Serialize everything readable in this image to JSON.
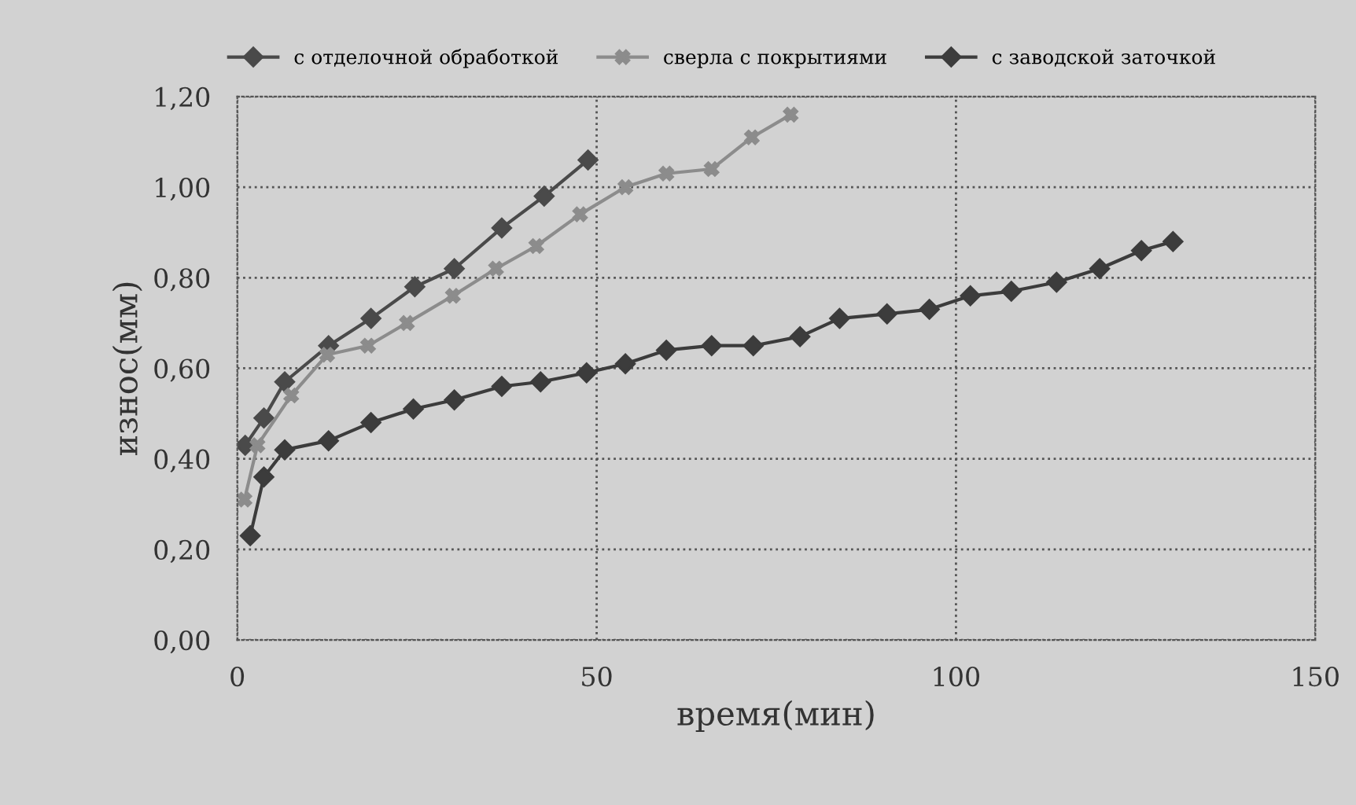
{
  "chart_data": {
    "type": "line",
    "xlabel": "время(мин)",
    "ylabel": "износ(мм)",
    "xlim": [
      0,
      150
    ],
    "xticks": [
      0,
      50,
      100,
      150
    ],
    "ylim": [
      0,
      1.2
    ],
    "yticks": [
      {
        "value": 0,
        "label": "0,00"
      },
      {
        "value": 0.2,
        "label": "0,20"
      },
      {
        "value": 0.4,
        "label": "0,40"
      },
      {
        "value": 0.6,
        "label": "0,60"
      },
      {
        "value": 0.8,
        "label": "0,80"
      },
      {
        "value": 1.0,
        "label": "1,00"
      },
      {
        "value": 1.2,
        "label": "1,20"
      }
    ],
    "grid": true,
    "legend": "top",
    "line_style": "solid",
    "series": [
      {
        "name": "с отделочной обработкой",
        "color": "#4a4a4a",
        "marker": "diamond",
        "x": [
          1.1,
          3.7,
          6.6,
          12.7,
          18.6,
          24.7,
          30.2,
          36.8,
          42.7,
          48.8
        ],
        "values": [
          0.43,
          0.49,
          0.57,
          0.65,
          0.71,
          0.78,
          0.82,
          0.91,
          0.98,
          1.06
        ]
      },
      {
        "name": "сверла с покрытиями",
        "color": "#8c8c8c",
        "marker": "cross",
        "x": [
          1,
          2.8,
          7.5,
          12.5,
          18.2,
          23.6,
          30,
          36,
          41.6,
          47.7,
          54,
          59.7,
          66,
          71.6,
          77
        ],
        "values": [
          0.31,
          0.43,
          0.54,
          0.63,
          0.65,
          0.7,
          0.76,
          0.82,
          0.87,
          0.94,
          1.0,
          1.03,
          1.04,
          1.11,
          1.16
        ]
      },
      {
        "name": "с заводской заточкой",
        "color": "#3c3c3c",
        "marker": "diamond",
        "x": [
          1.8,
          3.7,
          6.6,
          12.7,
          18.6,
          24.5,
          30.2,
          36.8,
          42.2,
          48.6,
          54,
          59.7,
          66,
          71.8,
          78.3,
          83.8,
          90.4,
          96.3,
          102,
          107.7,
          114,
          120,
          125.8,
          130.2
        ],
        "values": [
          0.23,
          0.36,
          0.42,
          0.44,
          0.48,
          0.51,
          0.53,
          0.56,
          0.57,
          0.59,
          0.61,
          0.64,
          0.65,
          0.65,
          0.67,
          0.71,
          0.72,
          0.73,
          0.76,
          0.77,
          0.79,
          0.82,
          0.86,
          0.88
        ]
      }
    ]
  }
}
